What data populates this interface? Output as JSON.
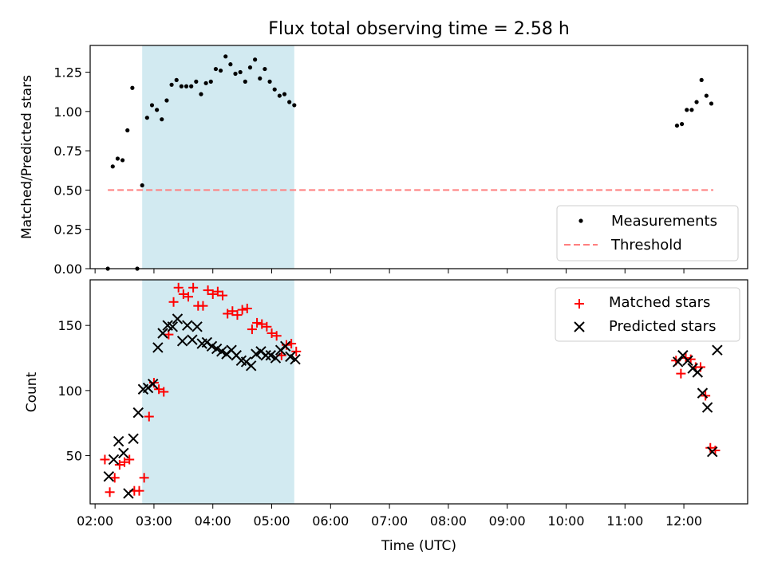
{
  "chart_data": {
    "type": "scatter",
    "title": "Flux total observing time = 2.58 h",
    "xlabel": "Time (UTC)",
    "x_ticks": [
      "02:00",
      "03:00",
      "04:00",
      "05:00",
      "06:00",
      "07:00",
      "08:00",
      "09:00",
      "10:00",
      "11:00",
      "12:00"
    ],
    "xlim": [
      "01:55",
      "13:05"
    ],
    "observing_window": {
      "start": "02:48",
      "end": "05:23",
      "color": "#add8e6"
    },
    "top_panel": {
      "ylabel": "Matched/Predicted stars",
      "ylim": [
        0,
        1.42
      ],
      "y_ticks": [
        "0.00",
        "0.25",
        "0.50",
        "0.75",
        "1.00",
        "1.25"
      ],
      "legend_position": "lower-right",
      "threshold": {
        "name": "Threshold",
        "value": 0.5,
        "x_range": [
          "02:13",
          "12:30"
        ],
        "color": "#ff7f7f"
      },
      "series": [
        {
          "name": "Measurements",
          "color": "#000000",
          "x": [
            "02:13",
            "02:18",
            "02:23",
            "02:28",
            "02:33",
            "02:38",
            "02:43",
            "02:48",
            "02:53",
            "02:58",
            "03:03",
            "03:08",
            "03:13",
            "03:18",
            "03:23",
            "03:28",
            "03:33",
            "03:38",
            "03:43",
            "03:48",
            "03:53",
            "03:58",
            "04:03",
            "04:08",
            "04:13",
            "04:18",
            "04:23",
            "04:28",
            "04:33",
            "04:38",
            "04:43",
            "04:48",
            "04:53",
            "04:58",
            "05:03",
            "05:08",
            "05:13",
            "05:18",
            "05:23",
            "11:53",
            "11:58",
            "12:03",
            "12:08",
            "12:13",
            "12:18",
            "12:23",
            "12:28"
          ],
          "y": [
            0.0,
            0.65,
            0.7,
            0.69,
            0.88,
            1.15,
            0.0,
            0.53,
            0.96,
            1.04,
            1.01,
            0.95,
            1.07,
            1.17,
            1.2,
            1.16,
            1.16,
            1.16,
            1.19,
            1.11,
            1.18,
            1.19,
            1.27,
            1.26,
            1.35,
            1.3,
            1.24,
            1.25,
            1.19,
            1.28,
            1.33,
            1.21,
            1.27,
            1.19,
            1.14,
            1.1,
            1.11,
            1.06,
            1.04,
            0.91,
            0.92,
            1.01,
            1.01,
            1.06,
            1.2,
            1.1,
            1.05
          ]
        }
      ]
    },
    "bottom_panel": {
      "ylabel": "Count",
      "ylim": [
        13,
        185
      ],
      "y_ticks": [
        "50",
        "100",
        "150"
      ],
      "legend_position": "upper-right",
      "series": [
        {
          "name": "Matched stars",
          "marker": "+",
          "color": "#ff0000",
          "x": [
            "02:10",
            "02:15",
            "02:20",
            "02:25",
            "02:30",
            "02:35",
            "02:40",
            "02:45",
            "02:50",
            "02:55",
            "03:00",
            "03:05",
            "03:10",
            "03:15",
            "03:20",
            "03:25",
            "03:30",
            "03:35",
            "03:40",
            "03:45",
            "03:50",
            "03:55",
            "04:00",
            "04:05",
            "04:10",
            "04:15",
            "04:20",
            "04:25",
            "04:30",
            "04:35",
            "04:40",
            "04:45",
            "04:50",
            "04:55",
            "05:00",
            "05:05",
            "05:10",
            "05:15",
            "05:20",
            "05:25",
            "11:52",
            "11:57",
            "12:02",
            "12:07",
            "12:12",
            "12:17",
            "12:22",
            "12:27",
            "12:32"
          ],
          "y": [
            47,
            22,
            33,
            43,
            45,
            47,
            23,
            23,
            33,
            80,
            106,
            101,
            99,
            143,
            168,
            179,
            174,
            172,
            179,
            165,
            165,
            177,
            174,
            176,
            173,
            159,
            161,
            158,
            162,
            163,
            147,
            152,
            151,
            149,
            144,
            142,
            127,
            135,
            136,
            130,
            123,
            113,
            125,
            124,
            118,
            118,
            96,
            56,
            54
          ]
        },
        {
          "name": "Predicted stars",
          "marker": "x",
          "color": "#000000",
          "x": [
            "02:14",
            "02:19",
            "02:24",
            "02:29",
            "02:34",
            "02:39",
            "02:44",
            "02:49",
            "02:54",
            "02:59",
            "03:04",
            "03:09",
            "03:14",
            "03:19",
            "03:24",
            "03:29",
            "03:34",
            "03:39",
            "03:44",
            "03:49",
            "03:54",
            "03:59",
            "04:04",
            "04:09",
            "04:14",
            "04:19",
            "04:24",
            "04:29",
            "04:34",
            "04:39",
            "04:44",
            "04:49",
            "04:54",
            "04:59",
            "05:04",
            "05:09",
            "05:14",
            "05:19",
            "05:24",
            "11:54",
            "11:59",
            "12:04",
            "12:09",
            "12:14",
            "12:19",
            "12:24",
            "12:29",
            "12:34"
          ],
          "y": [
            34,
            47,
            61,
            52,
            21,
            63,
            83,
            101,
            102,
            105,
            133,
            144,
            150,
            149,
            155,
            138,
            150,
            139,
            149,
            136,
            137,
            134,
            132,
            130,
            128,
            131,
            127,
            123,
            122,
            119,
            128,
            130,
            127,
            127,
            125,
            131,
            134,
            126,
            124,
            122,
            127,
            123,
            117,
            114,
            98,
            87,
            53,
            131
          ]
        }
      ]
    }
  }
}
